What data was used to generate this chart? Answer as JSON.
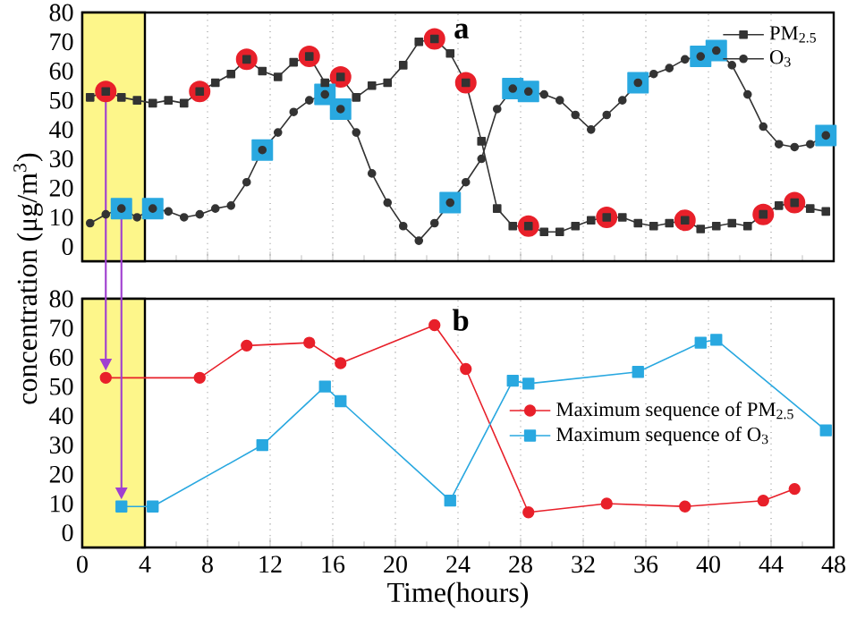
{
  "chart_data": [
    {
      "type": "line",
      "ylabel": "concentration (μg/m$^{3}$)",
      "annotations": [
        "a"
      ],
      "x": [
        0.5,
        1.5,
        2.5,
        3.5,
        4.5,
        5.5,
        6.5,
        7.5,
        8.5,
        9.5,
        10.5,
        11.5,
        12.5,
        13.5,
        14.5,
        15.5,
        16.5,
        17.5,
        18.5,
        19.5,
        20.5,
        21.5,
        22.5,
        23.5,
        24.5,
        25.5,
        26.5,
        27.5,
        28.5,
        29.5,
        30.5,
        31.5,
        32.5,
        33.5,
        34.5,
        35.5,
        36.5,
        37.5,
        38.5,
        39.5,
        40.5,
        41.5,
        42.5,
        43.5,
        44.5,
        45.5,
        46.5,
        47.5
      ],
      "series": [
        {
          "type": "scatter",
          "marker": "circle",
          "color": "#e8202a",
          "x": [
            1.5,
            7.5,
            10.5,
            14.5,
            16.5,
            22.5,
            24.5,
            28.5,
            33.5,
            38.5,
            43.5,
            45.5
          ],
          "values": [
            53,
            53,
            64,
            65,
            58,
            71,
            56,
            7,
            10,
            9,
            11,
            15
          ]
        },
        {
          "type": "scatter",
          "marker": "square",
          "color": "#29a8e0",
          "x": [
            2.5,
            4.5,
            11.5,
            15.5,
            16.5,
            23.5,
            27.5,
            28.5,
            35.5,
            39.5,
            40.5,
            47.5
          ],
          "values": [
            13,
            13,
            33,
            52,
            47,
            15,
            54,
            53,
            56,
            65,
            67,
            38
          ]
        },
        {
          "name": "PM$_{2.5}$",
          "marker": "square",
          "color": "#333333",
          "values": [
            51,
            53,
            51,
            50,
            49,
            50,
            49,
            53,
            56,
            59,
            64,
            60,
            58,
            63,
            65,
            56,
            58,
            51,
            55,
            56,
            62,
            70,
            71,
            66,
            56,
            36,
            13,
            7,
            7,
            5,
            5,
            7,
            9,
            10,
            10,
            8,
            7,
            8,
            9,
            6,
            7,
            8,
            7,
            11,
            14,
            15,
            13,
            12
          ]
        },
        {
          "name": "O$_{3}$",
          "marker": "circle",
          "color": "#333333",
          "values": [
            8,
            11,
            13,
            10,
            13,
            12,
            10,
            11,
            13,
            14,
            22,
            33,
            39,
            46,
            50,
            52,
            47,
            39,
            25,
            15,
            7,
            2,
            8,
            15,
            22,
            30,
            47,
            54,
            53,
            52,
            50,
            45,
            40,
            45,
            50,
            56,
            59,
            61,
            64,
            65,
            67,
            62,
            52,
            41,
            35,
            34,
            35,
            38
          ]
        }
      ],
      "xlim": [
        0,
        48
      ],
      "xticks": [
        0,
        4,
        8,
        12,
        16,
        20,
        24,
        28,
        32,
        36,
        40,
        44,
        48
      ],
      "ylim": [
        -5,
        80
      ],
      "yticks": [
        0,
        10,
        20,
        30,
        40,
        50,
        60,
        70,
        80
      ],
      "tick_labels": "y",
      "grid": "x",
      "legend": "top right",
      "bands": [
        {
          "axis": "x",
          "from": 0,
          "to": 4,
          "color": "#fdf68a"
        }
      ]
    },
    {
      "type": "line",
      "xlabel": "Time(hours)",
      "annotations": [
        "b"
      ],
      "series": [
        {
          "name": "Maximum sequence of PM$_{2.5}$",
          "marker": "circle",
          "color": "#e8202a",
          "x": [
            1.5,
            7.5,
            10.5,
            14.5,
            16.5,
            22.5,
            24.5,
            28.5,
            33.5,
            38.5,
            43.5,
            45.5
          ],
          "values": [
            53,
            53,
            64,
            65,
            58,
            71,
            56,
            7,
            10,
            9,
            11,
            15
          ]
        },
        {
          "name": "Maximum sequence of O$_{3}$",
          "marker": "square",
          "color": "#29a8e0",
          "x": [
            2.5,
            4.5,
            11.5,
            15.5,
            16.5,
            23.5,
            27.5,
            28.5,
            35.5,
            39.5,
            40.5,
            47.5
          ],
          "values": [
            9,
            9,
            30,
            50,
            45,
            11,
            52,
            51,
            55,
            65,
            66,
            35
          ]
        }
      ],
      "xlim": [
        0,
        48
      ],
      "xticks": [
        0,
        4,
        8,
        12,
        16,
        20,
        24,
        28,
        32,
        36,
        40,
        44,
        48
      ],
      "ylim": [
        -5,
        80
      ],
      "yticks": [
        0,
        10,
        20,
        30,
        40,
        50,
        60,
        70,
        80
      ],
      "grid": "x",
      "legend": "right",
      "bands": [
        {
          "axis": "x",
          "from": 0,
          "to": 4,
          "color": "#fdf68a"
        }
      ]
    }
  ]
}
